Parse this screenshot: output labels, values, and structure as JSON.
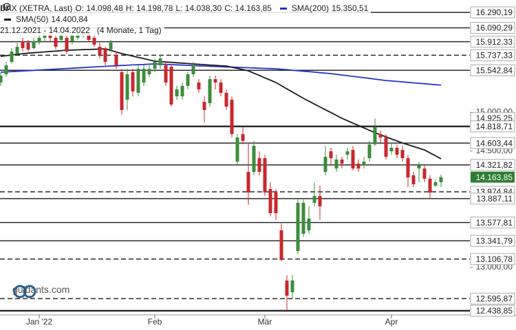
{
  "chart_data": {
    "type": "candlestick",
    "title": "DAX (XETRA, Last)",
    "ohlc_header": {
      "open": "O: 14.098,48",
      "high": "H: 14.198,78",
      "low": "L: 14.038,30",
      "close": "C: 14.163,85"
    },
    "date_range": "21.12.2021 - 14.04.2022",
    "period": "(4 Monate, 1 Tag)",
    "watermark": "guidants.com",
    "up_color": "#3d8c3d",
    "down_color": "#c8282d",
    "xlim": [
      -0.125,
      85.25
    ],
    "xticks": [
      {
        "value": 7,
        "label": "Jan '22"
      },
      {
        "value": 28,
        "label": "Feb"
      },
      {
        "value": 48,
        "label": "Mär"
      },
      {
        "value": 71,
        "label": "Apr"
      }
    ],
    "ylim": [
      12386,
      16450
    ],
    "yticks": [
      {
        "value": 15000,
        "label": "15.000,00"
      },
      {
        "value": 14500,
        "label": "14.500,00"
      },
      {
        "value": 13000,
        "label": "13.000,00"
      }
    ],
    "ohlc": [
      [
        15385,
        15518,
        15341,
        15474
      ],
      [
        15491,
        15651,
        15456,
        15607
      ],
      [
        15651,
        15829,
        15633,
        15784
      ],
      [
        15758,
        15900,
        15740,
        15846
      ],
      [
        15917,
        15962,
        15784,
        15829
      ],
      [
        15900,
        15935,
        15784,
        15811
      ],
      [
        15829,
        15962,
        15811,
        15917
      ],
      [
        15900,
        16050,
        15873,
        15962
      ],
      [
        15962,
        16184,
        15917,
        16024
      ],
      [
        16006,
        16050,
        15917,
        15962
      ],
      [
        15962,
        15988,
        15811,
        15846
      ],
      [
        15935,
        16050,
        15900,
        16006
      ],
      [
        15962,
        16006,
        15758,
        15784
      ],
      [
        15917,
        16050,
        15873,
        16006
      ],
      [
        15962,
        16077,
        15935,
        16024
      ],
      [
        15988,
        16113,
        15962,
        16050
      ],
      [
        16024,
        16050,
        15917,
        15935
      ],
      [
        15962,
        16006,
        15846,
        15873
      ],
      [
        15846,
        15900,
        15695,
        15740
      ],
      [
        15829,
        15846,
        15607,
        15651
      ],
      [
        15811,
        15935,
        15784,
        15900
      ],
      [
        15740,
        15784,
        15562,
        15607
      ],
      [
        15518,
        15562,
        14968,
        15030
      ],
      [
        15163,
        15562,
        15030,
        15491
      ],
      [
        15518,
        15562,
        15207,
        15270
      ],
      [
        15252,
        15607,
        15207,
        15562
      ],
      [
        15385,
        15607,
        15341,
        15562
      ],
      [
        15491,
        15607,
        15456,
        15562
      ],
      [
        15562,
        15695,
        15518,
        15651
      ],
      [
        15607,
        15740,
        15562,
        15695
      ],
      [
        15607,
        15651,
        15341,
        15385
      ],
      [
        15589,
        15607,
        15074,
        15101
      ],
      [
        15207,
        15341,
        15163,
        15296
      ],
      [
        15207,
        15385,
        15163,
        15341
      ],
      [
        15341,
        15518,
        15296,
        15491
      ],
      [
        15491,
        15651,
        15456,
        15607
      ],
      [
        15385,
        15429,
        15252,
        15296
      ],
      [
        15136,
        15207,
        14870,
        15030
      ],
      [
        15119,
        15474,
        15074,
        15429
      ],
      [
        15429,
        15474,
        15296,
        15385
      ],
      [
        15385,
        15429,
        15207,
        15252
      ],
      [
        15252,
        15296,
        15030,
        15074
      ],
      [
        15163,
        15207,
        14675,
        14719
      ],
      [
        14364,
        14719,
        14320,
        14675
      ],
      [
        14719,
        14808,
        14586,
        14631
      ],
      [
        14231,
        14604,
        13805,
        13965
      ],
      [
        14231,
        14631,
        14187,
        14568
      ],
      [
        14409,
        14497,
        14187,
        14231
      ],
      [
        14409,
        14453,
        13921,
        13965
      ],
      [
        14010,
        14098,
        13654,
        13699
      ],
      [
        13965,
        14010,
        13610,
        13699
      ],
      [
        13477,
        13566,
        13078,
        13095
      ],
      [
        12829,
        12900,
        12439,
        12634
      ],
      [
        12678,
        12900,
        12590,
        12829
      ],
      [
        13211,
        13876,
        13166,
        13832
      ],
      [
        13433,
        13876,
        13389,
        13832
      ],
      [
        13477,
        13787,
        13433,
        13628
      ],
      [
        13832,
        14098,
        13787,
        13921
      ],
      [
        13921,
        14054,
        13610,
        13787
      ],
      [
        14231,
        14568,
        14187,
        14426
      ],
      [
        14497,
        14542,
        14320,
        14409
      ],
      [
        14275,
        14453,
        14231,
        14391
      ],
      [
        14391,
        14426,
        14275,
        14338
      ],
      [
        14453,
        14542,
        14391,
        14497
      ],
      [
        14515,
        14568,
        14249,
        14275
      ],
      [
        14338,
        14391,
        14231,
        14275
      ],
      [
        14320,
        14426,
        14275,
        14364
      ],
      [
        14409,
        14631,
        14364,
        14586
      ],
      [
        14586,
        14923,
        14568,
        14808
      ],
      [
        14719,
        14764,
        14586,
        14675
      ],
      [
        14675,
        14719,
        14391,
        14426
      ],
      [
        14497,
        14604,
        14453,
        14542
      ],
      [
        14542,
        14586,
        14409,
        14453
      ],
      [
        14515,
        14568,
        14364,
        14409
      ],
      [
        14409,
        14453,
        14036,
        14160
      ],
      [
        14187,
        14231,
        14036,
        14072
      ],
      [
        14275,
        14364,
        14098,
        14320
      ],
      [
        14275,
        14320,
        14098,
        14143
      ],
      [
        14143,
        14187,
        13894,
        13965
      ],
      [
        14054,
        14125,
        14036,
        14098
      ],
      [
        14098.48,
        14198.78,
        14038.3,
        14163.85
      ]
    ],
    "overlays": [
      {
        "name": "SMA(200)",
        "value_label": "15.350,51",
        "color": "#2233cc",
        "values": [
          15518,
          15522,
          15526,
          15530,
          15534,
          15538,
          15542,
          15546,
          15550,
          15554,
          15558,
          15562,
          15566,
          15570,
          15574,
          15578,
          15582,
          15586,
          15590,
          15594,
          15598,
          15601,
          15605,
          15608,
          15612,
          15615,
          15618,
          15622,
          15625,
          15622,
          15619,
          15616,
          15613,
          15610,
          15607,
          15604,
          15601,
          15598,
          15595,
          15592,
          15589,
          15586,
          15584,
          15581,
          15578,
          15576,
          15573,
          15570,
          15567,
          15565,
          15562,
          15556,
          15550,
          15543,
          15537,
          15531,
          15525,
          15519,
          15512,
          15506,
          15500,
          15491,
          15482,
          15473,
          15464,
          15456,
          15447,
          15438,
          15429,
          15420,
          15411,
          15405,
          15399,
          15393,
          15387,
          15381,
          15375,
          15369,
          15363,
          15357,
          15350.51
        ]
      },
      {
        "name": "SMA(50)",
        "value_label": "14.400,84",
        "color": "#1a1a1a",
        "values": [
          15722,
          15731,
          15740,
          15749,
          15758,
          15764,
          15769,
          15775,
          15780,
          15786,
          15791,
          15797,
          15802,
          15804,
          15807,
          15809,
          15811,
          15814,
          15817,
          15820,
          15799,
          15779,
          15758,
          15742,
          15726,
          15709,
          15693,
          15677,
          15660,
          15655,
          15650,
          15645,
          15640,
          15635,
          15630,
          15625,
          15620,
          15616,
          15611,
          15607,
          15602,
          15598,
          15582,
          15567,
          15551,
          15536,
          15506,
          15476,
          15445,
          15415,
          15385,
          15344,
          15303,
          15263,
          15222,
          15181,
          15144,
          15107,
          15070,
          15033,
          14997,
          14960,
          14923,
          14892,
          14861,
          14830,
          14799,
          14768,
          14737,
          14710,
          14684,
          14657,
          14631,
          14604,
          14582,
          14560,
          14537,
          14515,
          14477,
          14439,
          14400.84
        ]
      }
    ],
    "levels": [
      {
        "value": 16290.19,
        "label": "16.290,19",
        "style": "solid"
      },
      {
        "value": 16090.29,
        "label": "16.090,29",
        "style": "solid"
      },
      {
        "value": 15912.33,
        "label": "15.912,33",
        "style": "solid"
      },
      {
        "value": 15737.33,
        "label": "15.737,33",
        "style": "dashed"
      },
      {
        "value": 15542.84,
        "label": "15.542,84",
        "style": "solid"
      },
      {
        "value": 14925.25,
        "label": "14.925,25",
        "style": "none"
      },
      {
        "value": 14818.71,
        "label": "14.818,71",
        "style": "thick"
      },
      {
        "value": 14603.44,
        "label": "14.603,44",
        "style": "solid"
      },
      {
        "value": 14321.82,
        "label": "14.321,82",
        "style": "solid"
      },
      {
        "value": 13974.84,
        "label": "13.974,84",
        "style": "dashed"
      },
      {
        "value": 13887.11,
        "label": "13.887,11",
        "style": "solid"
      },
      {
        "value": 13577.81,
        "label": "13.577,81",
        "style": "solid"
      },
      {
        "value": 13341.79,
        "label": "13.341,79",
        "style": "solid"
      },
      {
        "value": 13106.78,
        "label": "13.106,78",
        "style": "dashed"
      },
      {
        "value": 12595.87,
        "label": "12.595,87",
        "style": "dashed"
      },
      {
        "value": 12438.85,
        "label": "12.438,85",
        "style": "thick"
      }
    ],
    "current_price": {
      "value": 14163.85,
      "label": "14.163,85",
      "color": "#2e7d32"
    }
  }
}
